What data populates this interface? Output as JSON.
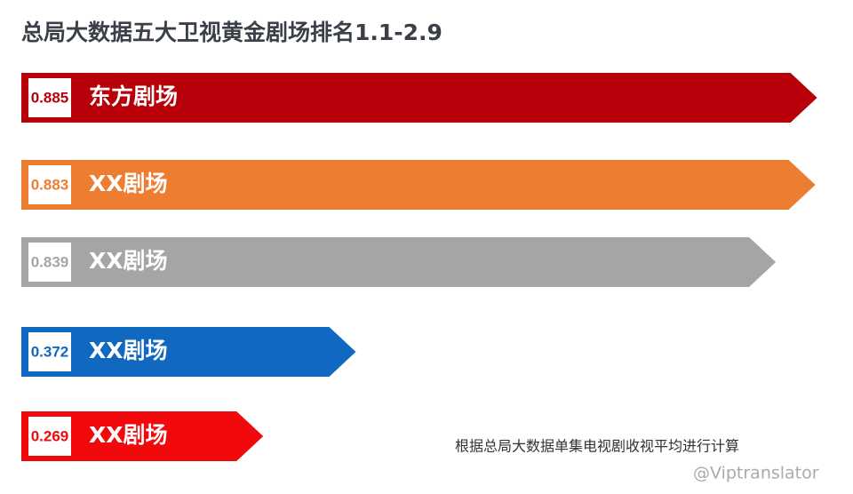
{
  "chart_data": {
    "type": "bar",
    "title": "总局大数据五大卫视黄金剧场排名1.1-2.9",
    "categories": [
      "东方剧场",
      "XX剧场",
      "XX剧场",
      "XX剧场",
      "XX剧场"
    ],
    "values": [
      0.885,
      0.883,
      0.839,
      0.372,
      0.269
    ],
    "colors": [
      "#b8000a",
      "#ed7d31",
      "#a5a5a5",
      "#1068c0",
      "#f2090b"
    ],
    "note": "根据总局大数据单集电视剧收视平均进行计算",
    "watermark": "@Viptranslator"
  }
}
